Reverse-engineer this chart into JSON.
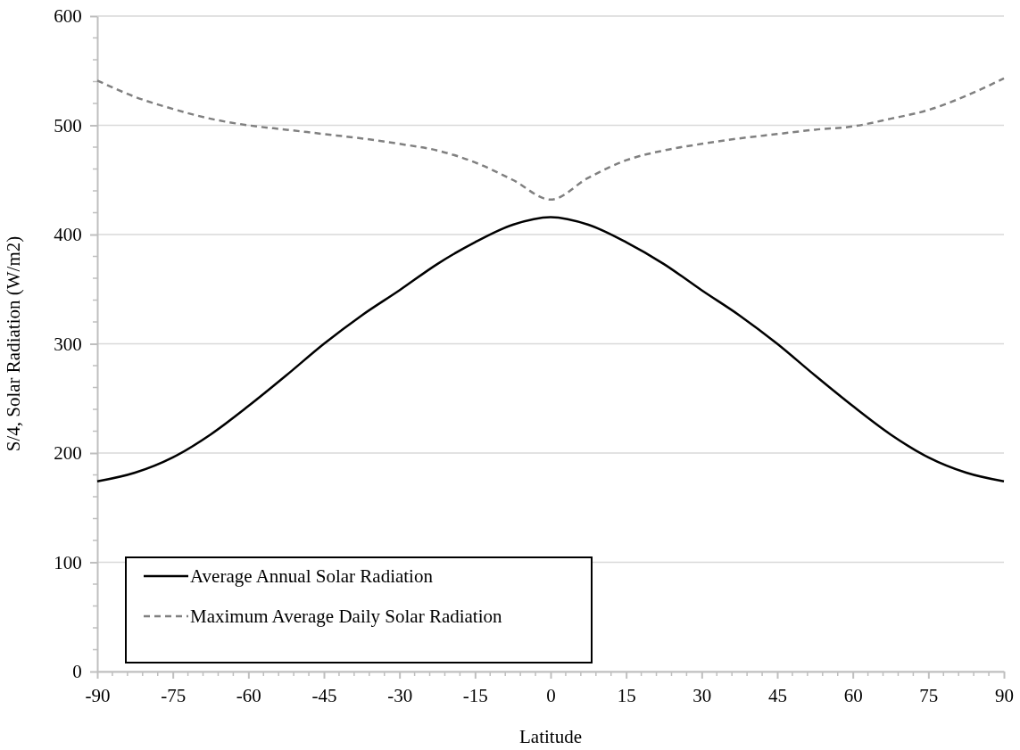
{
  "chart_data": {
    "type": "line",
    "xlabel": "Latitude",
    "ylabel": "S/4, Solar Radiation (W/m2)",
    "x": [
      -90,
      -82.5,
      -75,
      -67.5,
      -60,
      -52.5,
      -45,
      -37.5,
      -30,
      -22.5,
      -15,
      -7.5,
      0,
      7.5,
      15,
      22.5,
      30,
      37.5,
      45,
      52.5,
      60,
      67.5,
      75,
      82.5,
      90
    ],
    "series": [
      {
        "name": "Average Annual Solar Radiation",
        "color": "#000000",
        "line_style": "solid",
        "values": [
          174,
          182,
          196,
          217,
          243,
          271,
          300,
          326,
          349,
          373,
          393,
          409,
          416,
          409,
          393,
          373,
          349,
          326,
          300,
          271,
          243,
          217,
          196,
          182,
          174
        ]
      },
      {
        "name": "Maximum Average Daily Solar Radiation",
        "color": "#808080",
        "line_style": "dashed",
        "values": [
          541,
          526,
          515,
          506,
          500,
          496,
          492,
          488,
          483,
          477,
          466,
          450,
          432,
          452,
          468,
          477,
          483,
          488,
          492,
          496,
          499,
          506,
          514,
          527,
          543
        ]
      }
    ],
    "xlim": [
      -90,
      90
    ],
    "xticks": [
      -90,
      -75,
      -60,
      -45,
      -30,
      -15,
      0,
      15,
      30,
      45,
      60,
      75,
      90
    ],
    "ylim": [
      0,
      600
    ],
    "yticks": [
      0,
      100,
      200,
      300,
      400,
      500,
      600
    ],
    "grid": "y",
    "legend": "bottom left"
  }
}
